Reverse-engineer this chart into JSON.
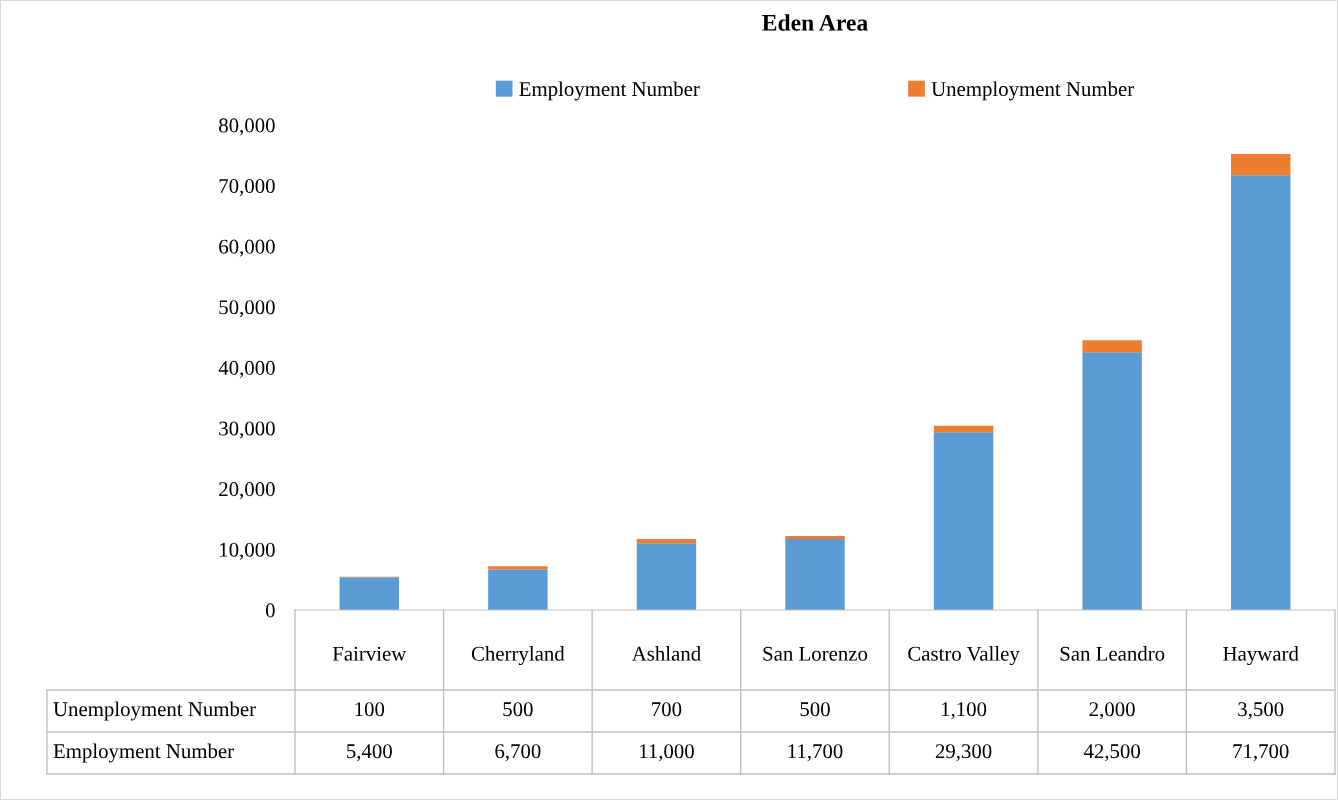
{
  "chart_data": {
    "type": "bar",
    "title": "Eden Area",
    "stacked": true,
    "categories": [
      "Fairview",
      "Cherryland",
      "Ashland",
      "San Lorenzo",
      "Castro Valley",
      "San Leandro",
      "Hayward"
    ],
    "series": [
      {
        "name": "Employment Number",
        "color": "#5b9bd5",
        "values": [
          5400,
          6700,
          11000,
          11700,
          29300,
          42500,
          71700
        ],
        "value_labels": [
          "5,400",
          "6,700",
          "11,000",
          "11,700",
          "29,300",
          "42,500",
          "71,700"
        ]
      },
      {
        "name": "Unemployment Number",
        "color": "#ed7d31",
        "values": [
          100,
          500,
          700,
          500,
          1100,
          2000,
          3500
        ],
        "value_labels": [
          "100",
          "500",
          "700",
          "500",
          "1,100",
          "2,000",
          "3,500"
        ]
      }
    ],
    "ylim": [
      0,
      80000
    ],
    "yticks": [
      {
        "value": 0,
        "label": "0"
      },
      {
        "value": 10000,
        "label": "10,000"
      },
      {
        "value": 20000,
        "label": "20,000"
      },
      {
        "value": 30000,
        "label": "30,000"
      },
      {
        "value": 40000,
        "label": "40,000"
      },
      {
        "value": 50000,
        "label": "50,000"
      },
      {
        "value": 60000,
        "label": "60,000"
      },
      {
        "value": 70000,
        "label": "70,000"
      },
      {
        "value": 80000,
        "label": "80,000"
      }
    ],
    "legend": "top",
    "grid": false
  }
}
